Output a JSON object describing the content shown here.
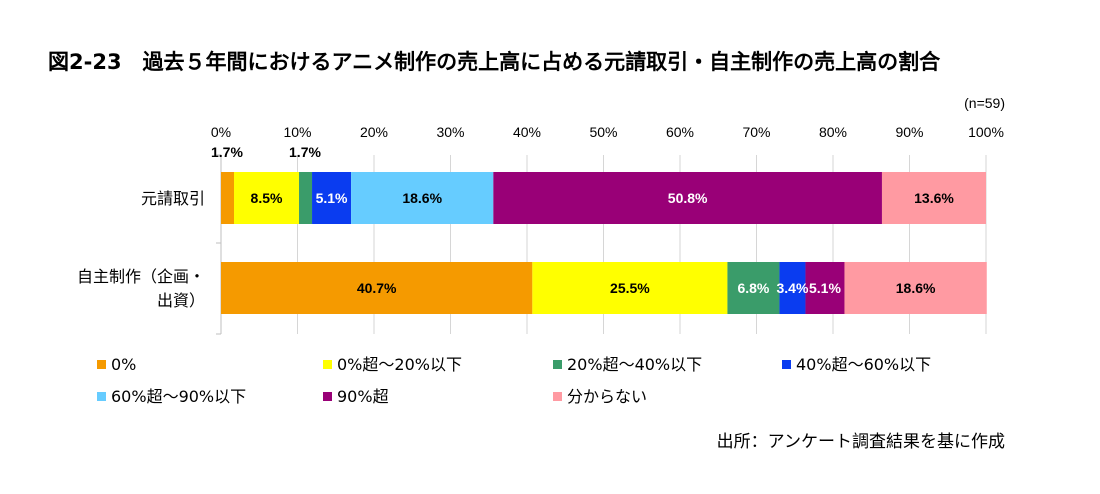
{
  "chart_data": {
    "type": "bar",
    "orientation": "horizontal",
    "stacked": true,
    "percent": true,
    "title": "図2-23　過去５年間におけるアニメ制作の売上高に占める元請取引・自主制作の売上高の割合",
    "note": "(n=59)",
    "xlim": [
      0,
      100
    ],
    "x_ticks": [
      "0%",
      "10%",
      "20%",
      "30%",
      "40%",
      "50%",
      "60%",
      "70%",
      "80%",
      "90%",
      "100%"
    ],
    "categories": [
      {
        "lines": [
          "元請取引"
        ]
      },
      {
        "lines": [
          "自主制作（企画・",
          "出資）"
        ]
      }
    ],
    "series": [
      {
        "name": "0%",
        "color": "#f59a00",
        "values": [
          1.7,
          40.7
        ],
        "labels": [
          "1.7%",
          "40.7%"
        ]
      },
      {
        "name": "0%超～20%以下",
        "color": "#ffff00",
        "values": [
          8.5,
          25.5
        ],
        "labels": [
          "8.5%",
          "25.5%"
        ]
      },
      {
        "name": "20%超～40%以下",
        "color": "#3a9c6a",
        "values": [
          1.7,
          6.8
        ],
        "labels": [
          "1.7%",
          "6.8%"
        ]
      },
      {
        "name": "40%超～60%以下",
        "color": "#0a3cf0",
        "values": [
          5.1,
          3.4
        ],
        "labels": [
          "5.1%",
          "3.4%"
        ]
      },
      {
        "name": "60%超～90%以下",
        "color": "#66ccff",
        "values": [
          18.6,
          0
        ],
        "labels": [
          "18.6%",
          ""
        ]
      },
      {
        "name": "90%超",
        "color": "#990077",
        "values": [
          50.8,
          5.1
        ],
        "labels": [
          "50.8%",
          "5.1%"
        ]
      },
      {
        "name": "分からない",
        "color": "#ff9aa2",
        "values": [
          13.6,
          18.6
        ],
        "labels": [
          "13.6%",
          "18.6%"
        ]
      }
    ],
    "legend_position": "bottom",
    "grid": true
  },
  "source": "出所：アンケート調査結果を基に作成"
}
